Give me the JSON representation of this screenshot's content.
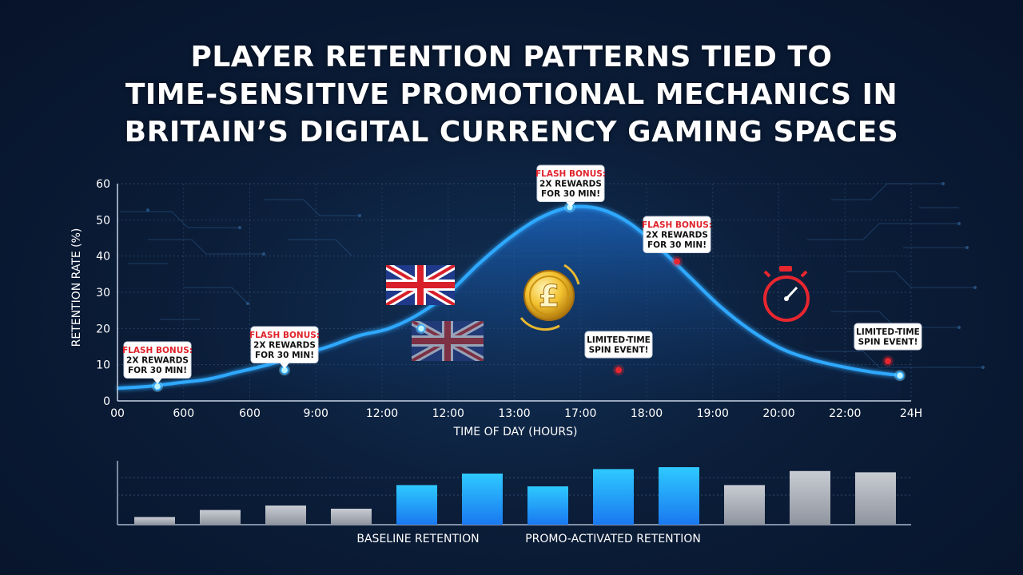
{
  "title_lines": [
    "PLAYER RETENTION PATTERNS TIED TO",
    "TIME-SENSITIVE PROMOTIONAL MECHANICS IN",
    "BRITAIN’S DIGITAL CURRENCY GAMING SPACES"
  ],
  "chart_data": [
    {
      "type": "line",
      "xlabel": "TIME OF DAY (HOURS)",
      "ylabel": "RETENTION RATE (%)",
      "ylim": [
        0,
        60
      ],
      "y_ticks": [
        0,
        10,
        20,
        30,
        40,
        50,
        60
      ],
      "x_tick_labels": [
        "00",
        "600",
        "600",
        "9:00",
        "12:00",
        "12:00",
        "13:00",
        "17:00",
        "18:00",
        "19:00",
        "20:00",
        "22:00",
        "24H"
      ],
      "grid": true,
      "series": [
        {
          "values": [
            3.5,
            4,
            5,
            6,
            8,
            10,
            12.5,
            15,
            18,
            20,
            24,
            30,
            38,
            45,
            50.5,
            53.5,
            53,
            49,
            42,
            34,
            26,
            19.5,
            14.5,
            11.5,
            9.5,
            8,
            7
          ],
          "highlighted_points": [
            4,
            8.5,
            20,
            53.5,
            7
          ]
        }
      ],
      "annotations": [
        {
          "lines": [
            "FLASH BONUS:",
            "2X REWARDS",
            "FOR 30 MIN!"
          ],
          "marker_value": 4
        },
        {
          "lines": [
            "FLASH BONUS:",
            "2X REWARDS",
            "FOR 30 MIN!"
          ],
          "marker_value": 8.5
        },
        {
          "lines": [
            "FLASH BONUS:",
            "2X REWARDS",
            "FOR 30 MIN!"
          ],
          "marker_value": 53.5
        },
        {
          "lines": [
            "FLASH BONUS:",
            "2X REWARDS",
            "FOR 30 MIN!"
          ],
          "marker_value": 38.5
        },
        {
          "lines": [
            "LIMITED-TIME",
            "SPIN EVENT!"
          ],
          "marker_value": 8.5
        },
        {
          "lines": [
            "LIMITED-TIME",
            "SPIN EVENT!"
          ],
          "marker_value": 11
        }
      ]
    },
    {
      "type": "bar",
      "values": [
        12,
        23,
        30,
        25,
        62,
        80,
        60,
        87,
        90,
        62,
        84,
        82
      ],
      "bar_groups": [
        "baseline",
        "baseline",
        "baseline",
        "baseline",
        "promo",
        "promo",
        "promo",
        "promo",
        "promo",
        "baseline",
        "baseline",
        "baseline"
      ],
      "legend": [
        "BASELINE RETENTION",
        "PROMO-ACTIVATED RETENTION"
      ]
    }
  ],
  "colors": {
    "line": "#2fa9ff",
    "promo_bar": "#22b8ff",
    "baseline_bar": "#aab0bb",
    "flash_label": "#e0232b",
    "marker_red": "#e8262f"
  }
}
